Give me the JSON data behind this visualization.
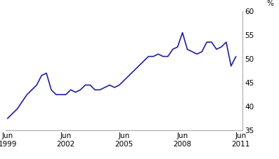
{
  "x_values": [
    1999.5,
    1999.75,
    2000.0,
    2000.25,
    2000.5,
    2000.75,
    2001.0,
    2001.25,
    2001.5,
    2001.75,
    2002.0,
    2002.25,
    2002.5,
    2002.75,
    2003.0,
    2003.25,
    2003.5,
    2003.75,
    2004.0,
    2004.25,
    2004.5,
    2004.75,
    2005.0,
    2005.25,
    2005.5,
    2005.75,
    2006.0,
    2006.25,
    2006.5,
    2006.75,
    2007.0,
    2007.25,
    2007.5,
    2007.75,
    2008.0,
    2008.25,
    2008.5,
    2008.75,
    2009.0,
    2009.25,
    2009.5,
    2009.75,
    2010.0,
    2010.25,
    2010.5,
    2010.75,
    2011.0,
    2011.25
  ],
  "y_values": [
    37.5,
    38.5,
    39.5,
    41.0,
    42.5,
    43.5,
    44.5,
    46.5,
    47.0,
    43.5,
    42.5,
    42.5,
    42.5,
    43.5,
    43.0,
    43.5,
    44.5,
    44.5,
    43.5,
    43.5,
    44.0,
    44.5,
    44.0,
    44.5,
    45.5,
    46.5,
    47.5,
    48.5,
    49.5,
    50.5,
    50.5,
    51.0,
    50.5,
    50.5,
    52.0,
    52.5,
    55.5,
    52.0,
    51.5,
    51.0,
    51.5,
    53.5,
    53.5,
    52.0,
    52.5,
    53.5,
    48.5,
    50.5
  ],
  "line_color": "#1f1f9c",
  "line_width": 1.2,
  "xlim": [
    1999.4,
    2011.6
  ],
  "ylim": [
    35,
    60
  ],
  "yticks": [
    35,
    40,
    45,
    50,
    55,
    60
  ],
  "xtick_positions": [
    1999.5,
    2002.5,
    2005.5,
    2008.5,
    2011.5
  ],
  "xticklabels_top": [
    "Jun",
    "Jun",
    "Jun",
    "Jun",
    "Jun"
  ],
  "xticklabels_bot": [
    "1999",
    "2002",
    "2005",
    "2008",
    "2011"
  ],
  "pct_label": "%",
  "background_color": "#ffffff",
  "spine_color": "#aaaaaa",
  "tick_fontsize": 7.5
}
